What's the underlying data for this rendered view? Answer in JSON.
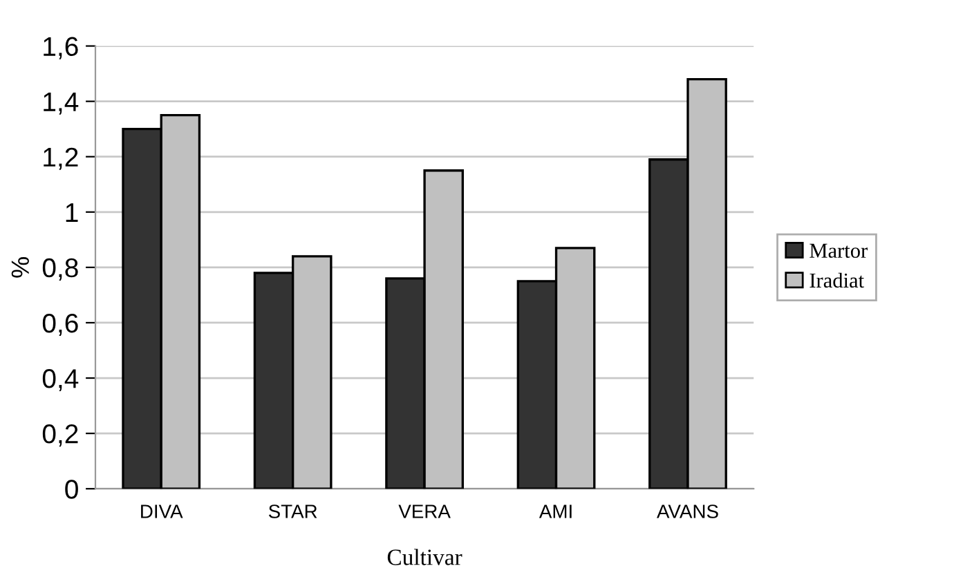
{
  "chart_data": {
    "type": "bar",
    "xlabel": "Cultivar",
    "ylabel": "%",
    "categories": [
      "DIVA",
      "STAR",
      "VERA",
      "AMI",
      "AVANS"
    ],
    "series": [
      {
        "name": "Martor",
        "color": "#333333",
        "values": [
          1.3,
          0.78,
          0.76,
          0.75,
          1.19
        ]
      },
      {
        "name": "Iradiat",
        "color": "#c0c0c0",
        "values": [
          1.35,
          0.84,
          1.15,
          0.87,
          1.48
        ]
      }
    ],
    "ylim": [
      0,
      1.6
    ],
    "yticks": [
      0,
      {
        "value": 0.2,
        "label": "0,2"
      },
      {
        "value": 0.4,
        "label": "0,4"
      },
      {
        "value": 0.6,
        "label": "0,6"
      },
      {
        "value": 0.8,
        "label": "0,8"
      },
      1,
      {
        "value": 1.2,
        "label": "1,2"
      },
      {
        "value": 1.4,
        "label": "1,4"
      },
      {
        "value": 1.6,
        "label": "1,6"
      }
    ],
    "grid": "y",
    "legend": "right"
  }
}
